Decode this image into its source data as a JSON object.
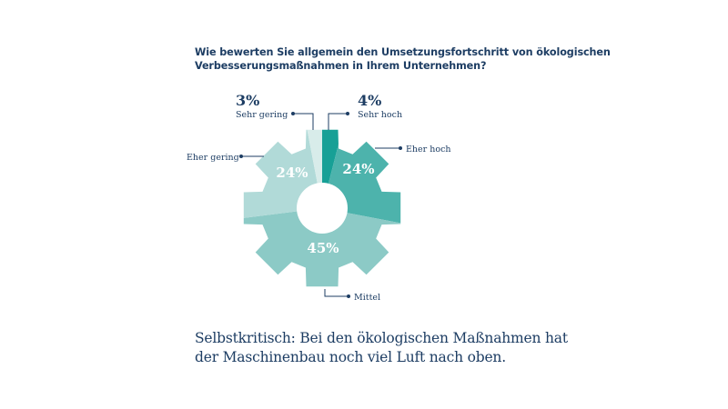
{
  "question": {
    "line1": "Wie bewerten Sie allgemein den Umsetzungsfortschritt von ökologischen",
    "line2": "Verbesserungsmaßnahmen in Ihrem Unternehmen?"
  },
  "labels": {
    "sehr_gering": {
      "name": "Sehr gering",
      "value": "3%"
    },
    "sehr_hoch": {
      "name": "Sehr hoch",
      "value": "4%"
    },
    "eher_hoch": {
      "name": "Eher hoch",
      "value": "24%"
    },
    "eher_gering": {
      "name": "Eher gering",
      "value": "24%"
    },
    "mittel": {
      "name": "Mittel",
      "value": "45%"
    }
  },
  "caption": {
    "line1": "Selbstkritisch: Bei den ökologischen Maßnahmen hat",
    "line2": "der Maschinenbau noch viel Luft nach oben."
  },
  "colors": {
    "sehr_hoch": "#17a096",
    "eher_hoch": "#4db3ac",
    "mittel": "#8ccac6",
    "eher_gering": "#b1dad8",
    "sehr_gering": "#d8ecea",
    "text": "#1d3d63",
    "leader": "#1d3d63"
  },
  "chart_data": {
    "type": "pie",
    "title": "Wie bewerten Sie allgemein den Umsetzungsfortschritt von ökologischen Verbesserungsmaßnahmen in Ihrem Unternehmen?",
    "shape": "gear-donut",
    "categories": [
      "Sehr hoch",
      "Eher hoch",
      "Mittel",
      "Eher gering",
      "Sehr gering"
    ],
    "values": [
      4,
      24,
      45,
      24,
      3
    ],
    "unit": "%",
    "start_angle": "12 o'clock",
    "direction": "clockwise",
    "caption": "Selbstkritisch: Bei den ökologischen Maßnahmen hat der Maschinenbau noch viel Luft nach oben."
  }
}
